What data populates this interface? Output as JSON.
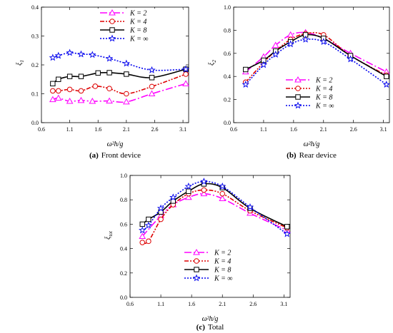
{
  "chart_data": [
    {
      "type": "line",
      "caption_tag": "(a)",
      "caption_text": "Front device",
      "ylabel": "ξ",
      "ylabel_sub": "1",
      "xlabel": "ω²h/g",
      "xlim": [
        0.6,
        3.2
      ],
      "ylim": [
        0,
        0.4
      ],
      "xticks": [
        "0.6",
        "1.1",
        "1.6",
        "2.1",
        "2.6",
        "3.1"
      ],
      "yticks": [
        "0.0",
        "0.1",
        "0.2",
        "0.3",
        "0.4"
      ],
      "legend": "top-right",
      "series": [
        {
          "name": "K = 2",
          "x": [
            0.8,
            0.9,
            1.1,
            1.3,
            1.5,
            1.8,
            2.1,
            2.55,
            3.15
          ],
          "y": [
            0.08,
            0.085,
            0.074,
            0.077,
            0.074,
            0.075,
            0.072,
            0.1,
            0.135
          ]
        },
        {
          "name": "K = 4",
          "x": [
            0.8,
            0.9,
            1.1,
            1.3,
            1.55,
            1.8,
            2.1,
            2.55,
            3.15
          ],
          "y": [
            0.11,
            0.11,
            0.115,
            0.11,
            0.126,
            0.118,
            0.1,
            0.125,
            0.168
          ]
        },
        {
          "name": "K = 8",
          "x": [
            0.8,
            0.9,
            1.1,
            1.3,
            1.6,
            1.8,
            2.1,
            2.55,
            3.15
          ],
          "y": [
            0.135,
            0.15,
            0.16,
            0.16,
            0.172,
            0.173,
            0.168,
            0.156,
            0.185
          ]
        },
        {
          "name": "K = ∞",
          "x": [
            0.8,
            0.9,
            1.1,
            1.3,
            1.5,
            1.8,
            2.1,
            2.55,
            3.15
          ],
          "y": [
            0.225,
            0.232,
            0.242,
            0.237,
            0.235,
            0.222,
            0.205,
            0.182,
            0.185
          ]
        }
      ]
    },
    {
      "type": "line",
      "caption_tag": "(b)",
      "caption_text": "Rear device",
      "ylabel": "ξ",
      "ylabel_sub": "2",
      "xlabel": "ω²h/g",
      "xlim": [
        0.6,
        3.2
      ],
      "ylim": [
        0,
        1.0
      ],
      "xticks": [
        "0.6",
        "1.1",
        "1.6",
        "2.1",
        "2.6",
        "3.1"
      ],
      "yticks": [
        "0.0",
        "0.2",
        "0.4",
        "0.6",
        "0.8",
        "1.0"
      ],
      "legend": "bottom-center",
      "series": [
        {
          "name": "K = 2",
          "x": [
            0.8,
            1.1,
            1.3,
            1.55,
            1.8,
            2.1,
            2.55,
            3.15
          ],
          "y": [
            0.44,
            0.57,
            0.67,
            0.76,
            0.78,
            0.73,
            0.6,
            0.44
          ]
        },
        {
          "name": "K = 4",
          "x": [
            0.8,
            1.1,
            1.3,
            1.55,
            1.8,
            2.1,
            2.55,
            3.15
          ],
          "y": [
            0.35,
            0.52,
            0.62,
            0.72,
            0.77,
            0.76,
            0.58,
            0.41
          ]
        },
        {
          "name": "K = 8",
          "x": [
            0.8,
            1.1,
            1.3,
            1.55,
            1.8,
            2.1,
            2.55,
            3.15
          ],
          "y": [
            0.46,
            0.54,
            0.62,
            0.7,
            0.76,
            0.73,
            0.58,
            0.4
          ]
        },
        {
          "name": "K = ∞",
          "x": [
            0.8,
            1.1,
            1.3,
            1.55,
            1.8,
            2.1,
            2.55,
            3.15
          ],
          "y": [
            0.33,
            0.5,
            0.59,
            0.68,
            0.72,
            0.7,
            0.55,
            0.33
          ]
        }
      ]
    },
    {
      "type": "line",
      "caption_tag": "(c)",
      "caption_text": "Total",
      "ylabel": "ξ",
      "ylabel_sub": "tot",
      "xlabel": "ω²h/g",
      "xlim": [
        0.6,
        3.2
      ],
      "ylim": [
        0,
        1.0
      ],
      "xticks": [
        "0.6",
        "1.1",
        "1.6",
        "2.1",
        "2.6",
        "3.1"
      ],
      "yticks": [
        "0.0",
        "0.2",
        "0.4",
        "0.6",
        "0.8",
        "1.0"
      ],
      "legend": "bottom-center",
      "series": [
        {
          "name": "K = 2",
          "x": [
            0.8,
            1.1,
            1.3,
            1.55,
            1.8,
            2.1,
            2.55,
            3.15
          ],
          "y": [
            0.5,
            0.67,
            0.76,
            0.82,
            0.85,
            0.81,
            0.69,
            0.55
          ]
        },
        {
          "name": "K = 4",
          "x": [
            0.8,
            0.9,
            1.1,
            1.3,
            1.55,
            1.8,
            2.1,
            2.55,
            3.15
          ],
          "y": [
            0.45,
            0.46,
            0.64,
            0.76,
            0.85,
            0.88,
            0.85,
            0.71,
            0.57
          ]
        },
        {
          "name": "K = 8",
          "x": [
            0.8,
            0.9,
            1.1,
            1.3,
            1.55,
            1.8,
            2.1,
            2.55,
            3.15
          ],
          "y": [
            0.6,
            0.64,
            0.7,
            0.79,
            0.87,
            0.93,
            0.9,
            0.73,
            0.58
          ]
        },
        {
          "name": "K = ∞",
          "x": [
            0.8,
            0.9,
            1.1,
            1.3,
            1.55,
            1.8,
            2.1,
            2.55,
            3.15
          ],
          "y": [
            0.55,
            0.59,
            0.73,
            0.82,
            0.91,
            0.95,
            0.91,
            0.74,
            0.52
          ]
        }
      ]
    }
  ],
  "style": {
    "series_colors": [
      "#ff00ff",
      "#dd0000",
      "#000000",
      "#0000ee"
    ],
    "series_markers": [
      "triangle",
      "circle",
      "square",
      "star"
    ],
    "series_dash": [
      "10,3,2,3",
      "6,2,2,2,2,2",
      "",
      "2,2"
    ]
  }
}
